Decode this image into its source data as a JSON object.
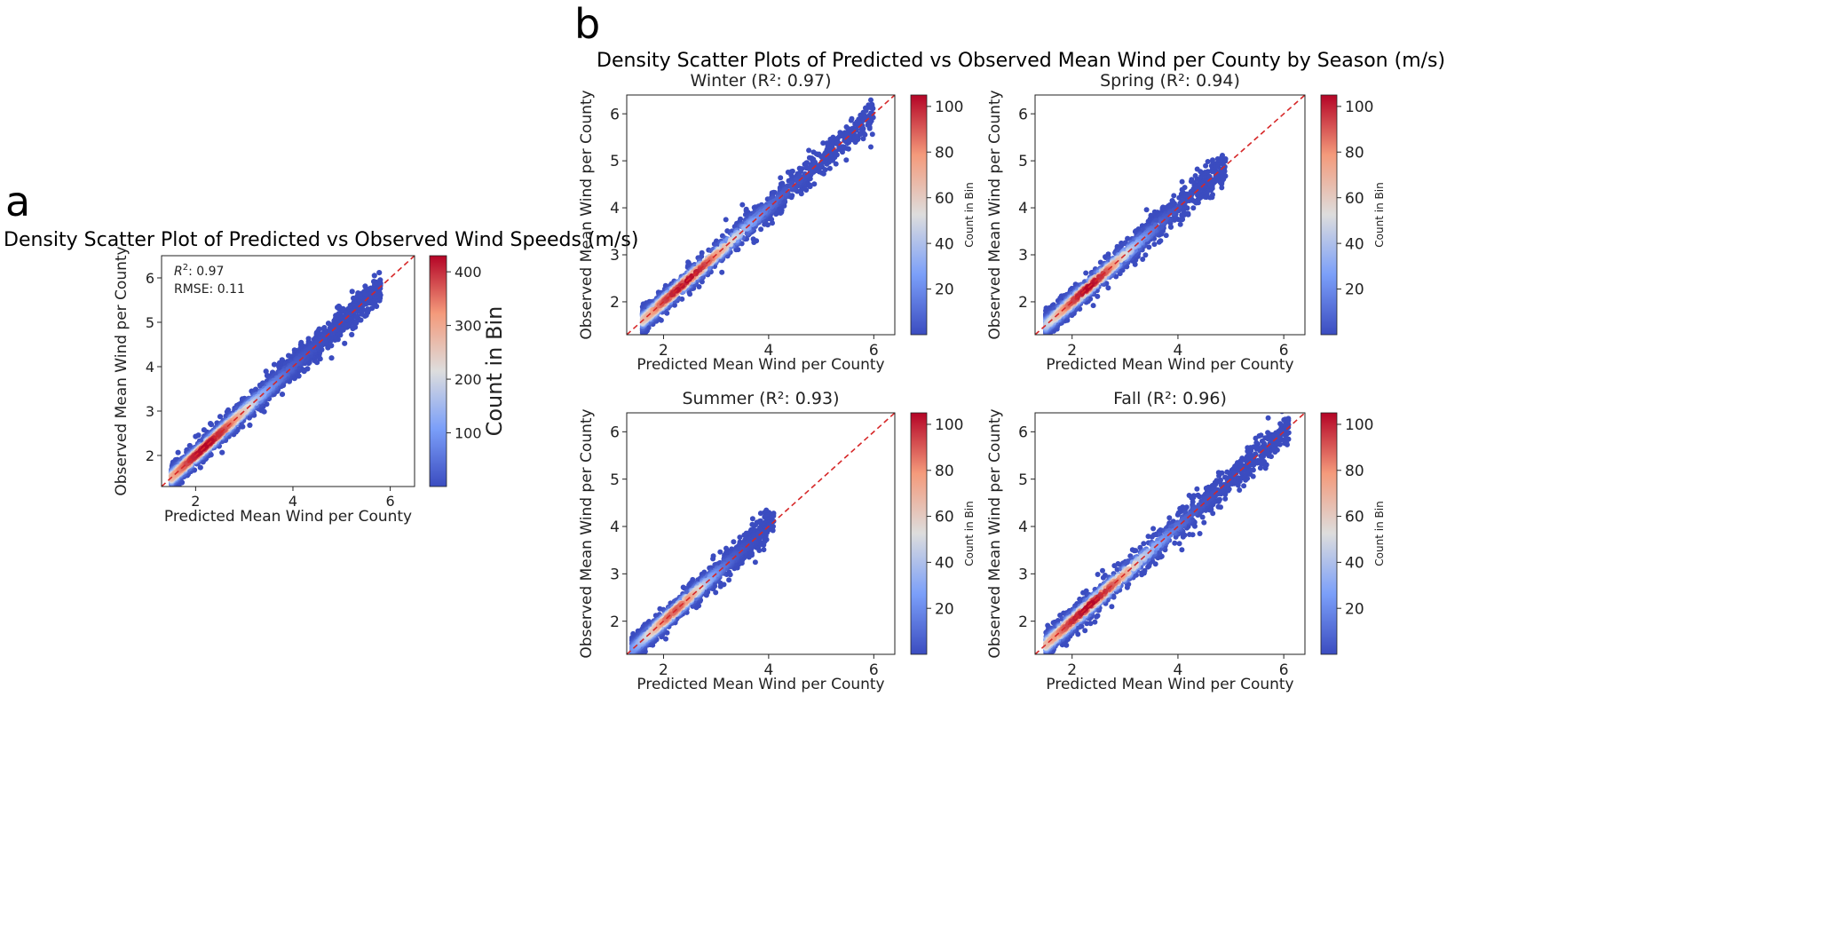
{
  "panel_labels": {
    "a": "a",
    "b": "b"
  },
  "figure_b_title": "Density Scatter Plots of Predicted vs Observed Mean Wind per County by Season (m/s)",
  "colormap": {
    "low": "#3b4cc0",
    "mid": "#dddddd",
    "high": "#b40426"
  },
  "chart_data": [
    {
      "id": "overall",
      "type": "scatter",
      "variant": "hexbin-density",
      "title": "Density Scatter Plot of Predicted vs Observed Wind Speeds (m/s)",
      "xlabel": "Predicted Mean Wind per County",
      "ylabel": "Observed Mean Wind per County",
      "xlim": [
        1.3,
        6.5
      ],
      "ylim": [
        1.3,
        6.5
      ],
      "xticks": [
        2,
        4,
        6
      ],
      "yticks": [
        2,
        3,
        4,
        5,
        6
      ],
      "annotation": {
        "r2_label": "R",
        "r2_sup": "2",
        "r2_value": ": 0.97",
        "rmse": "RMSE: 0.11"
      },
      "reference_line": {
        "type": "y=x",
        "style": "dashed",
        "color": "#d62728"
      },
      "colorbar": {
        "label": "Count in Bin",
        "min": 0,
        "max": 430,
        "ticks": [
          100,
          200,
          300,
          400
        ]
      },
      "cloud": {
        "x_range": [
          1.5,
          5.8
        ],
        "spread": 0.16,
        "density_peak_x": 2.2,
        "max_count": 430
      }
    },
    {
      "id": "winter",
      "type": "scatter",
      "variant": "hexbin-density",
      "title": "Winter (R²: 0.97)",
      "xlabel": "Predicted Mean Wind per County",
      "ylabel": "Observed Mean Wind per County",
      "xlim": [
        1.3,
        6.4
      ],
      "ylim": [
        1.3,
        6.4
      ],
      "xticks": [
        2,
        4,
        6
      ],
      "yticks": [
        2,
        3,
        4,
        5,
        6
      ],
      "reference_line": {
        "type": "y=x",
        "style": "dashed",
        "color": "#d62728"
      },
      "colorbar": {
        "label": "Count in Bin",
        "min": 0,
        "max": 105,
        "ticks": [
          20,
          40,
          60,
          80,
          100
        ]
      },
      "cloud": {
        "x_range": [
          1.6,
          6.0
        ],
        "spread": 0.16,
        "density_peak_x": 2.4,
        "max_count": 105
      }
    },
    {
      "id": "spring",
      "type": "scatter",
      "variant": "hexbin-density",
      "title": "Spring (R²: 0.94)",
      "xlabel": "Predicted Mean Wind per County",
      "ylabel": "Observed Mean Wind per County",
      "xlim": [
        1.3,
        6.4
      ],
      "ylim": [
        1.3,
        6.4
      ],
      "xticks": [
        2,
        4,
        6
      ],
      "yticks": [
        2,
        3,
        4,
        5,
        6
      ],
      "reference_line": {
        "type": "y=x",
        "style": "dashed",
        "color": "#d62728"
      },
      "colorbar": {
        "label": "Count in Bin",
        "min": 0,
        "max": 105,
        "ticks": [
          20,
          40,
          60,
          80,
          100
        ]
      },
      "cloud": {
        "x_range": [
          1.5,
          4.9
        ],
        "spread": 0.16,
        "density_peak_x": 2.3,
        "max_count": 105
      }
    },
    {
      "id": "summer",
      "type": "scatter",
      "variant": "hexbin-density",
      "title": "Summer (R²: 0.93)",
      "xlabel": "Predicted Mean Wind per County",
      "ylabel": "Observed Mean Wind per County",
      "xlim": [
        1.3,
        6.4
      ],
      "ylim": [
        1.3,
        6.4
      ],
      "xticks": [
        2,
        4,
        6
      ],
      "yticks": [
        2,
        3,
        4,
        5,
        6
      ],
      "reference_line": {
        "type": "y=x",
        "style": "dashed",
        "color": "#d62728"
      },
      "colorbar": {
        "label": "Count in Bin",
        "min": 0,
        "max": 105,
        "ticks": [
          20,
          40,
          60,
          80,
          100
        ]
      },
      "cloud": {
        "x_range": [
          1.4,
          4.1
        ],
        "spread": 0.15,
        "density_peak_x": 2.2,
        "max_count": 90
      }
    },
    {
      "id": "fall",
      "type": "scatter",
      "variant": "hexbin-density",
      "title": "Fall (R²: 0.96)",
      "xlabel": "Predicted Mean Wind per County",
      "ylabel": "Observed Mean Wind per County",
      "xlim": [
        1.3,
        6.4
      ],
      "ylim": [
        1.3,
        6.4
      ],
      "xticks": [
        2,
        4,
        6
      ],
      "yticks": [
        2,
        3,
        4,
        5,
        6
      ],
      "reference_line": {
        "type": "y=x",
        "style": "dashed",
        "color": "#d62728"
      },
      "colorbar": {
        "label": "Count in Bin",
        "min": 0,
        "max": 105,
        "ticks": [
          20,
          40,
          60,
          80,
          100
        ]
      },
      "cloud": {
        "x_range": [
          1.5,
          6.1
        ],
        "spread": 0.17,
        "density_peak_x": 2.3,
        "max_count": 105
      }
    }
  ]
}
